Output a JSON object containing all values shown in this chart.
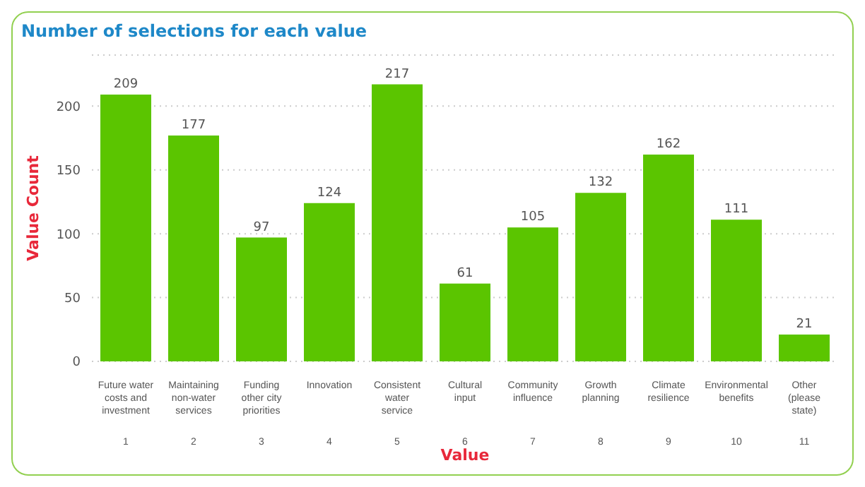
{
  "chart_data": {
    "type": "bar",
    "title": "Number of selections for each value",
    "xlabel": "Value",
    "ylabel": "Value Count",
    "categories": [
      "Future water costs and investment\n1",
      "Maintaining non-water services\n2",
      "Funding other city priorities\n3",
      "Innovation\n4",
      "Consistent water service\n5",
      "Cultural input\n6",
      "Community influence\n7",
      "Growth planning\n8",
      "Climate resilience\n9",
      "Environmental benefits\n10",
      "Other (please state)\n11"
    ],
    "values": [
      209,
      177,
      97,
      124,
      217,
      61,
      105,
      132,
      162,
      111,
      21
    ],
    "color": "#5bc500",
    "ylim": [
      0,
      240
    ],
    "yticks": [
      0,
      50,
      100,
      150,
      200
    ],
    "grid": "y",
    "data_labels": true
  }
}
